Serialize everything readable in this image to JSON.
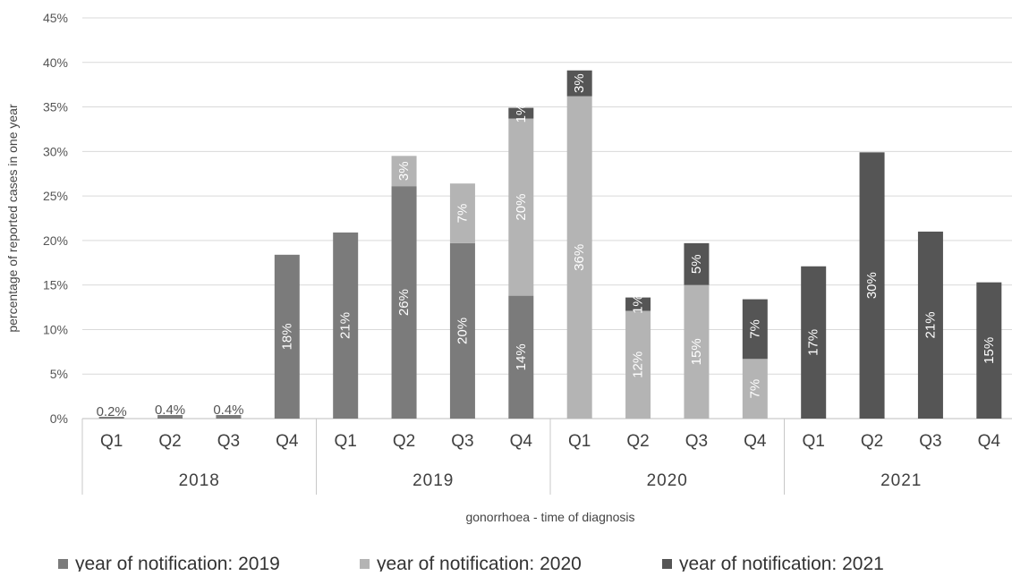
{
  "chart_data": {
    "type": "bar",
    "stacked": true,
    "categories": [
      "Q1",
      "Q2",
      "Q3",
      "Q4",
      "Q1",
      "Q2",
      "Q3",
      "Q4",
      "Q1",
      "Q2",
      "Q3",
      "Q4",
      "Q1",
      "Q2",
      "Q3",
      "Q4"
    ],
    "groups": [
      {
        "label": "2018",
        "span": 4
      },
      {
        "label": "2019",
        "span": 4
      },
      {
        "label": "2020",
        "span": 4
      },
      {
        "label": "2021",
        "span": 4
      }
    ],
    "series": [
      {
        "name": "year of notification: 2019",
        "color": "#7b7b7b",
        "values": [
          0.2,
          0.4,
          0.4,
          18.4,
          20.9,
          26.1,
          19.7,
          13.8,
          0,
          0,
          0,
          0,
          0,
          0,
          0,
          0
        ],
        "labels": [
          "0.2%",
          "0.4%",
          "0.4%",
          "18%",
          "21%",
          "26%",
          "20%",
          "14%",
          "",
          "",
          "",
          "",
          "",
          "",
          "",
          ""
        ]
      },
      {
        "name": "year of notification: 2020",
        "color": "#b4b4b4",
        "values": [
          0,
          0,
          0,
          0,
          0,
          3.4,
          6.7,
          19.9,
          36.2,
          12.1,
          15.0,
          6.7,
          0,
          0,
          0,
          0
        ],
        "labels": [
          "",
          "",
          "",
          "",
          "",
          "3%",
          "7%",
          "20%",
          "36%",
          "12%",
          "15%",
          "7%",
          "",
          "",
          "",
          ""
        ]
      },
      {
        "name": "year of notification: 2021",
        "color": "#555555",
        "values": [
          0,
          0,
          0,
          0,
          0,
          0,
          0,
          1.2,
          2.9,
          1.5,
          4.7,
          6.7,
          17.1,
          29.9,
          21.0,
          15.3
        ],
        "labels": [
          "",
          "",
          "",
          "",
          "",
          "",
          "",
          "1%",
          "3%",
          "1%",
          "5%",
          "7%",
          "17%",
          "30%",
          "21%",
          "15%"
        ]
      }
    ],
    "y_ticks": [
      "0%",
      "5%",
      "10%",
      "15%",
      "20%",
      "25%",
      "30%",
      "35%",
      "40%",
      "45%"
    ],
    "ylim": [
      0,
      45
    ],
    "ylabel": "percentage of reported cases in one year",
    "xlabel": "gonorrhoea - time of diagnosis",
    "grid": true,
    "legend_position": "bottom"
  }
}
